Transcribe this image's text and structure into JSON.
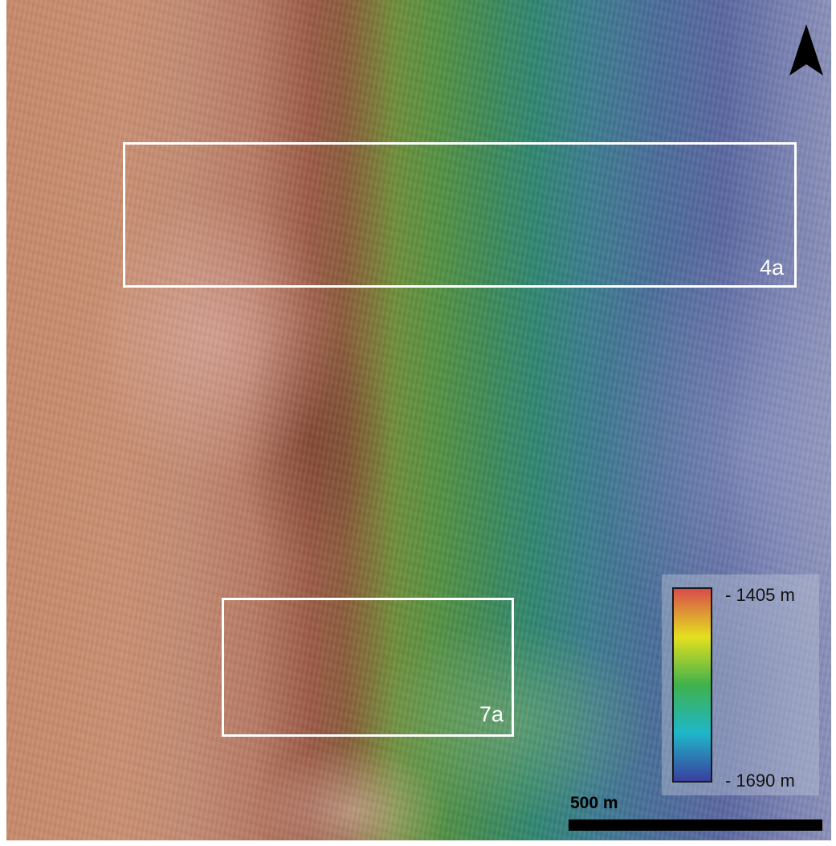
{
  "map": {
    "insets": [
      {
        "label": "4a"
      },
      {
        "label": "7a"
      }
    ],
    "legend": {
      "max_label": "- 1405 m",
      "min_label": "- 1690 m",
      "colormap": [
        "#3a3f9e",
        "#1fb6c9",
        "#3fb24c",
        "#e4e01f",
        "#d94b4b"
      ]
    },
    "scale_bar": {
      "label": "500 m"
    },
    "north_arrow": {
      "icon": "north-arrow-icon"
    }
  }
}
